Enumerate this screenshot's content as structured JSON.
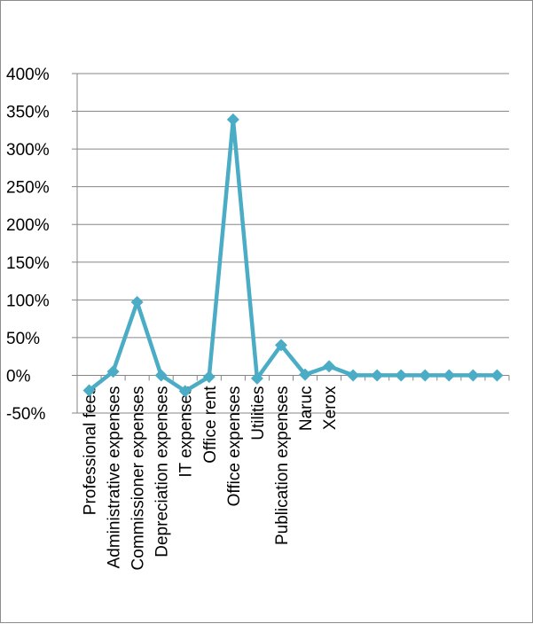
{
  "chart_data": {
    "type": "line",
    "title": "",
    "xlabel": "",
    "ylabel": "",
    "categories": [
      "Professional fees",
      "Administrative expenses",
      "Commissioner expenses",
      "Depreciation expenses",
      "IT expenses",
      "Office rent",
      "Office expenses",
      "Utilities",
      "Publication expenses",
      "Naruc",
      "Xerox",
      "",
      "",
      "",
      "",
      "",
      "",
      ""
    ],
    "series": [
      {
        "values": [
          -20,
          5,
          97,
          0,
          -21,
          -2,
          339,
          -4,
          40,
          1,
          12,
          0,
          0,
          0,
          0,
          0,
          0,
          0
        ]
      }
    ],
    "y_ticks": [
      "-50%",
      "0%",
      "50%",
      "100%",
      "150%",
      "200%",
      "250%",
      "300%",
      "350%",
      "400%"
    ],
    "ylim": [
      -50,
      400
    ],
    "grid": true,
    "legend": "none",
    "colors": {
      "series": "#4bacc6",
      "grid": "#868686",
      "axis": "#868686"
    }
  }
}
